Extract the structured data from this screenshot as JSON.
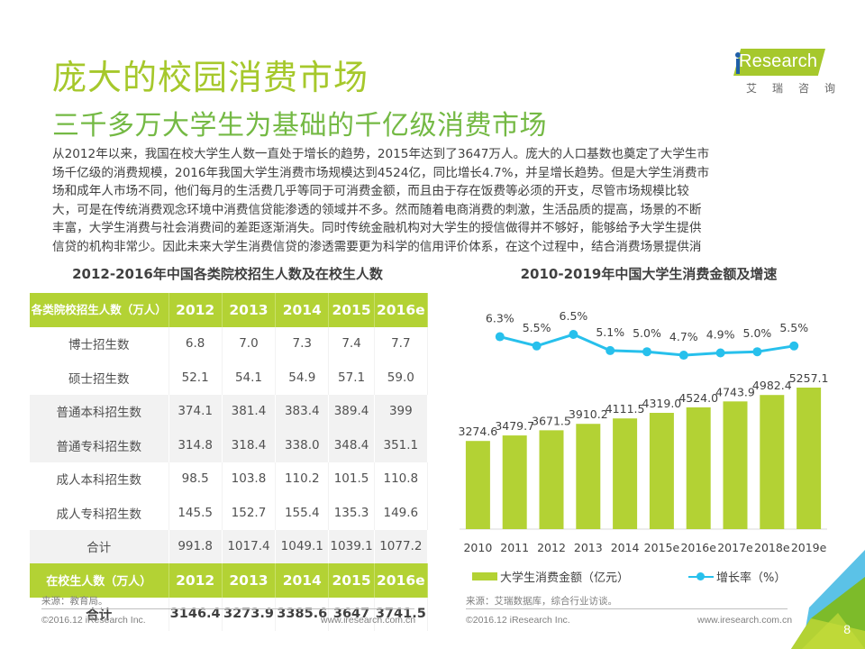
{
  "header": {
    "title": "庞大的校园消费市场",
    "subtitle": "三千多万大学生为基础的千亿级消费市场"
  },
  "logo": {
    "brand": "Research",
    "brand_i": "i",
    "chinese": "艾瑞咨询",
    "brand_color": "#a6c82c"
  },
  "intro_lines": [
    "从2012年以来，我国在校大学生人数一直处于增长的趋势，2015年达到了3647万人。庞大的人口基数也奠定了大学生市",
    "场千亿级的消费规模，2016年我国大学生消费市场规模达到4524亿，同比增长4.7%，并呈增长趋势。但是大学生消费市",
    "场和成年人市场不同，他们每月的生活费几乎等同于可消费金额，而且由于存在饭费等必须的开支，尽管市场规模比较",
    "大，可是在传统消费观念环境中消费信贷能渗透的领域并不多。然而随着电商消费的刺激，生活品质的提高，场景的不断",
    "丰富，大学生消费与社会消费间的差距逐渐消失。同时传统金融机构对大学生的授信做得并不够好，能够给予大学生提供",
    "信贷的机构非常少。因此未来大学生消费信贷的渗透需要更为科学的信用评价体系，在这个过程中，结合消费场景提供消"
  ],
  "table": {
    "title": "2012-2016年中国各类院校招生人数及在校生人数",
    "header_label": "各类院校招生人数（万人）",
    "years": [
      "2012",
      "2013",
      "2014",
      "2015",
      "2016e"
    ],
    "rows": [
      {
        "label": "博士招生数",
        "values": [
          "6.8",
          "7.0",
          "7.3",
          "7.4",
          "7.7"
        ]
      },
      {
        "label": "硕士招生数",
        "values": [
          "52.1",
          "54.1",
          "54.9",
          "57.1",
          "59.0"
        ]
      },
      {
        "label": "普通本科招生数",
        "values": [
          "374.1",
          "381.4",
          "383.4",
          "389.4",
          "399"
        ]
      },
      {
        "label": "普通专科招生数",
        "values": [
          "314.8",
          "318.4",
          "338.0",
          "348.4",
          "351.1"
        ]
      },
      {
        "label": "成人本科招生数",
        "values": [
          "98.5",
          "103.8",
          "110.2",
          "101.5",
          "110.8"
        ]
      },
      {
        "label": "成人专科招生数",
        "values": [
          "145.5",
          "152.7",
          "155.4",
          "135.3",
          "149.6"
        ]
      },
      {
        "label": "合计",
        "values": [
          "991.8",
          "1017.4",
          "1049.1",
          "1039.1",
          "1077.2"
        ]
      }
    ],
    "header2_label": "在校生人数（万人）",
    "header2_years": [
      "2012",
      "2013",
      "2014",
      "2015",
      "2016e"
    ],
    "total_row": {
      "label": "合计",
      "values": [
        "3146.4",
        "3273.9",
        "3385.6",
        "3647",
        "3741.5"
      ]
    },
    "source": "来源：教育局。"
  },
  "chart_data": {
    "type": "bar",
    "title": "2010-2019年中国大学生消费金额及增速",
    "categories": [
      "2010",
      "2011",
      "2012",
      "2013",
      "2014",
      "2015e",
      "2016e",
      "2017e",
      "2018e",
      "2019e"
    ],
    "series": [
      {
        "name": "大学生消费金额（亿元）",
        "type": "bar",
        "color": "#b3d234",
        "values": [
          3274.6,
          3479.7,
          3671.5,
          3910.2,
          4111.5,
          4319.0,
          4524.0,
          4743.9,
          4982.4,
          5257.1
        ],
        "labels": [
          "3274.6",
          "3479.7",
          "3671.5",
          "3910.2",
          "4111.5",
          "4319.0",
          "4524.0",
          "4743.9",
          "4982.4",
          "5257.1"
        ]
      },
      {
        "name": "增长率（%）",
        "type": "line",
        "color": "#27c0ec",
        "values": [
          6.3,
          5.5,
          6.5,
          5.1,
          5.0,
          4.7,
          4.9,
          5.0,
          5.5
        ],
        "x_start_index": 1,
        "labels": [
          "6.3%",
          "5.5%",
          "6.5%",
          "5.1%",
          "5.0%",
          "4.7%",
          "4.9%",
          "5.0%",
          "5.5%"
        ]
      }
    ],
    "xlabel": "",
    "ylabel": "",
    "ylim": [
      0,
      5300
    ],
    "grid": false,
    "legend": "bottom",
    "source": "来源：艾瑞数据库，综合行业访谈。"
  },
  "footer": {
    "copyright": "©2016.12 iResearch Inc.",
    "website": "www.iresearch.com.cn",
    "page_number": "8"
  }
}
